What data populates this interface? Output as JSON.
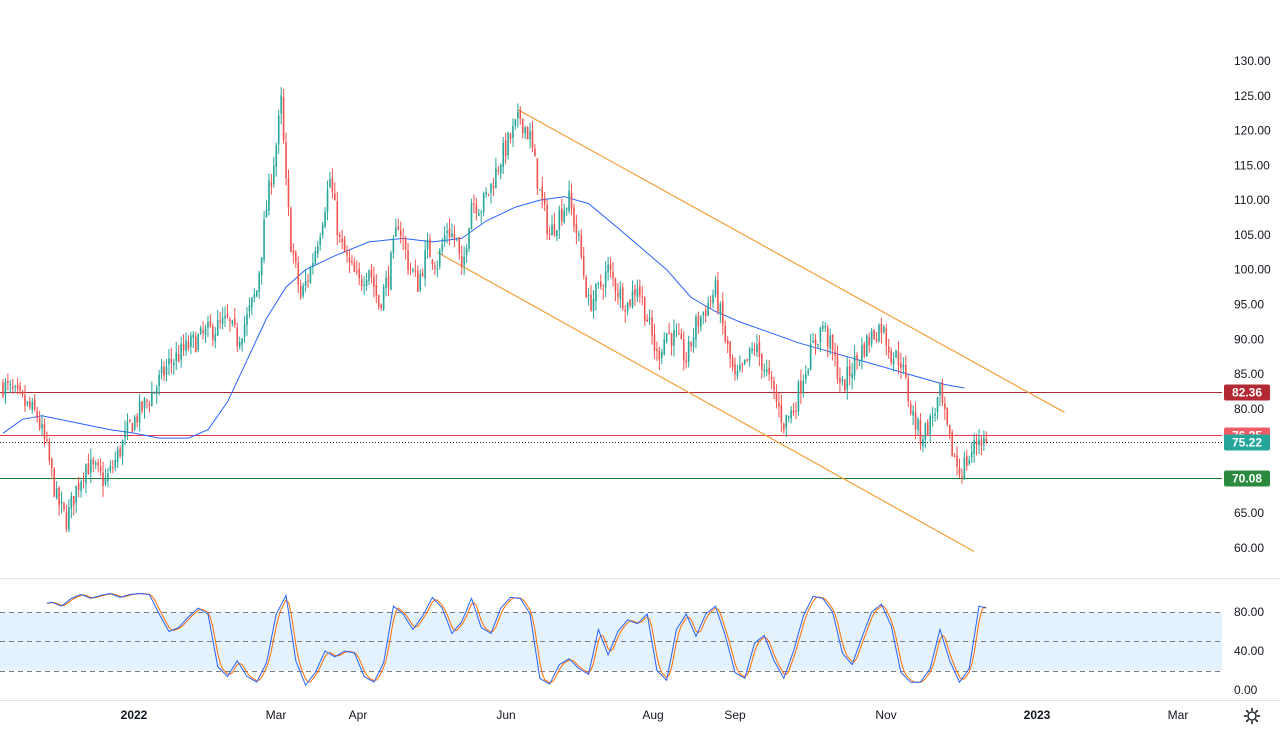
{
  "colors": {
    "up": "#26a69a",
    "down": "#ef5350",
    "ma": "#2962ff",
    "channel": "#f5a03a",
    "resistance": "#b22833",
    "pivot": "#f23645",
    "support": "#1b7b2c",
    "stoch_k": "#2962ff",
    "stoch_d": "#ff6d00",
    "stoch_band": "#e3f2fd"
  },
  "chart_data": [
    {
      "type": "candlestick",
      "price_axis": {
        "ylim": [
          57.5,
          132.0
        ],
        "ticks": [
          "60.00",
          "65.00",
          "70.00",
          "75.00",
          "80.00",
          "85.00",
          "90.00",
          "95.00",
          "100.00",
          "105.00",
          "110.00",
          "115.00",
          "120.00",
          "125.00",
          "130.00"
        ]
      },
      "time_axis": {
        "labels": [
          "2022",
          "Mar",
          "Apr",
          "Jun",
          "Aug",
          "Sep",
          "Nov",
          "2023",
          "Mar"
        ],
        "bold": [
          "2022",
          "2023"
        ]
      },
      "horizontal_levels": [
        {
          "value": 82.36,
          "label": "82.36",
          "style": "solid",
          "role": "resistance"
        },
        {
          "value": 76.25,
          "label": "76.25",
          "style": "solid",
          "role": "pivot"
        },
        {
          "value": 75.22,
          "label": "75.22",
          "style": "dotted",
          "role": "last-price"
        },
        {
          "value": 70.08,
          "label": "70.08",
          "style": "solid",
          "role": "support"
        }
      ],
      "anchors": [
        {
          "t": 0,
          "p": 83.5
        },
        {
          "t": 8,
          "p": 81.0
        },
        {
          "t": 14,
          "p": 79.0
        },
        {
          "t": 18,
          "p": 74.0
        },
        {
          "t": 22,
          "p": 67.0
        },
        {
          "t": 26,
          "p": 64.0
        },
        {
          "t": 30,
          "p": 68.5
        },
        {
          "t": 34,
          "p": 72.0
        },
        {
          "t": 38,
          "p": 71.0
        },
        {
          "t": 42,
          "p": 69.5
        },
        {
          "t": 46,
          "p": 72.5
        },
        {
          "t": 52,
          "p": 77.5
        },
        {
          "t": 60,
          "p": 81.5
        },
        {
          "t": 68,
          "p": 86.5
        },
        {
          "t": 76,
          "p": 89.0
        },
        {
          "t": 84,
          "p": 91.0
        },
        {
          "t": 92,
          "p": 92.5
        },
        {
          "t": 96,
          "p": 90.0
        },
        {
          "t": 100,
          "p": 93.0
        },
        {
          "t": 104,
          "p": 97.0
        },
        {
          "t": 108,
          "p": 109.0
        },
        {
          "t": 112,
          "p": 118.0
        },
        {
          "t": 114,
          "p": 124.0
        },
        {
          "t": 116,
          "p": 112.0
        },
        {
          "t": 118,
          "p": 104.0
        },
        {
          "t": 122,
          "p": 96.0
        },
        {
          "t": 126,
          "p": 100.0
        },
        {
          "t": 130,
          "p": 106.0
        },
        {
          "t": 134,
          "p": 113.0
        },
        {
          "t": 138,
          "p": 104.0
        },
        {
          "t": 142,
          "p": 100.5
        },
        {
          "t": 146,
          "p": 98.0
        },
        {
          "t": 150,
          "p": 100.5
        },
        {
          "t": 154,
          "p": 95.0
        },
        {
          "t": 158,
          "p": 99.0
        },
        {
          "t": 162,
          "p": 107.0
        },
        {
          "t": 166,
          "p": 101.0
        },
        {
          "t": 170,
          "p": 98.0
        },
        {
          "t": 174,
          "p": 103.0
        },
        {
          "t": 178,
          "p": 101.0
        },
        {
          "t": 182,
          "p": 106.0
        },
        {
          "t": 186,
          "p": 104.0
        },
        {
          "t": 188,
          "p": 99.0
        },
        {
          "t": 192,
          "p": 110.0
        },
        {
          "t": 196,
          "p": 109.0
        },
        {
          "t": 200,
          "p": 112.0
        },
        {
          "t": 204,
          "p": 116.0
        },
        {
          "t": 208,
          "p": 119.0
        },
        {
          "t": 212,
          "p": 122.0
        },
        {
          "t": 216,
          "p": 119.0
        },
        {
          "t": 220,
          "p": 111.0
        },
        {
          "t": 224,
          "p": 105.0
        },
        {
          "t": 228,
          "p": 108.0
        },
        {
          "t": 232,
          "p": 110.0
        },
        {
          "t": 236,
          "p": 104.0
        },
        {
          "t": 240,
          "p": 95.0
        },
        {
          "t": 244,
          "p": 97.0
        },
        {
          "t": 248,
          "p": 100.0
        },
        {
          "t": 252,
          "p": 97.0
        },
        {
          "t": 256,
          "p": 95.0
        },
        {
          "t": 260,
          "p": 98.0
        },
        {
          "t": 264,
          "p": 93.0
        },
        {
          "t": 268,
          "p": 87.5
        },
        {
          "t": 272,
          "p": 91.0
        },
        {
          "t": 276,
          "p": 90.0
        },
        {
          "t": 280,
          "p": 87.0
        },
        {
          "t": 284,
          "p": 92.0
        },
        {
          "t": 288,
          "p": 94.5
        },
        {
          "t": 292,
          "p": 97.0
        },
        {
          "t": 296,
          "p": 90.0
        },
        {
          "t": 300,
          "p": 84.0
        },
        {
          "t": 304,
          "p": 86.0
        },
        {
          "t": 308,
          "p": 89.0
        },
        {
          "t": 312,
          "p": 86.0
        },
        {
          "t": 316,
          "p": 82.0
        },
        {
          "t": 320,
          "p": 78.0
        },
        {
          "t": 324,
          "p": 80.0
        },
        {
          "t": 328,
          "p": 85.0
        },
        {
          "t": 332,
          "p": 89.0
        },
        {
          "t": 336,
          "p": 92.0
        },
        {
          "t": 340,
          "p": 88.0
        },
        {
          "t": 344,
          "p": 83.0
        },
        {
          "t": 348,
          "p": 86.0
        },
        {
          "t": 352,
          "p": 88.5
        },
        {
          "t": 356,
          "p": 90.5
        },
        {
          "t": 360,
          "p": 92.0
        },
        {
          "t": 364,
          "p": 88.0
        },
        {
          "t": 368,
          "p": 87.0
        },
        {
          "t": 372,
          "p": 80.0
        },
        {
          "t": 376,
          "p": 76.0
        },
        {
          "t": 380,
          "p": 78.0
        },
        {
          "t": 384,
          "p": 82.0
        },
        {
          "t": 388,
          "p": 75.0
        },
        {
          "t": 392,
          "p": 71.0
        },
        {
          "t": 396,
          "p": 73.0
        },
        {
          "t": 400,
          "p": 76.0
        },
        {
          "t": 403,
          "p": 75.22
        }
      ],
      "moving_average": [
        [
          0,
          76.5
        ],
        [
          8,
          78.5
        ],
        [
          16,
          79.0
        ],
        [
          30,
          78.0
        ],
        [
          44,
          77.0
        ],
        [
          54,
          76.5
        ],
        [
          64,
          75.8
        ],
        [
          76,
          75.8
        ],
        [
          84,
          77.0
        ],
        [
          92,
          81.0
        ],
        [
          100,
          87.0
        ],
        [
          108,
          93.0
        ],
        [
          116,
          97.5
        ],
        [
          124,
          100.0
        ],
        [
          136,
          102.0
        ],
        [
          150,
          104.0
        ],
        [
          164,
          104.5
        ],
        [
          176,
          104.0
        ],
        [
          188,
          104.5
        ],
        [
          198,
          107.0
        ],
        [
          210,
          109.0
        ],
        [
          220,
          110.0
        ],
        [
          230,
          110.5
        ],
        [
          240,
          109.5
        ],
        [
          252,
          106.0
        ],
        [
          262,
          103.0
        ],
        [
          272,
          100.0
        ],
        [
          282,
          96.0
        ],
        [
          292,
          94.0
        ],
        [
          302,
          92.5
        ],
        [
          314,
          91.0
        ],
        [
          326,
          89.5
        ],
        [
          336,
          88.5
        ],
        [
          346,
          87.5
        ],
        [
          356,
          86.5
        ],
        [
          366,
          85.5
        ],
        [
          376,
          84.5
        ],
        [
          386,
          83.5
        ],
        [
          394,
          83.0
        ]
      ],
      "channel": {
        "upper": [
          [
            211,
            123.0
          ],
          [
            435,
            79.5
          ]
        ],
        "lower": [
          [
            178,
            102.5
          ],
          [
            398,
            59.5
          ]
        ]
      }
    },
    {
      "type": "line",
      "name": "Stochastic",
      "ylim": [
        0,
        100
      ],
      "ticks": [
        "80.00",
        "40.00",
        "0.00"
      ],
      "band": {
        "upper": 80,
        "middle": 50,
        "lower": 20
      },
      "k_anchors": [
        [
          0,
          17
        ],
        [
          4,
          8
        ],
        [
          8,
          6
        ],
        [
          12,
          50
        ],
        [
          16,
          88
        ],
        [
          20,
          90
        ],
        [
          24,
          86
        ],
        [
          28,
          94
        ],
        [
          32,
          98
        ],
        [
          36,
          94
        ],
        [
          40,
          97
        ],
        [
          44,
          99
        ],
        [
          48,
          95
        ],
        [
          52,
          98
        ],
        [
          56,
          99
        ],
        [
          60,
          98
        ],
        [
          64,
          78
        ],
        [
          68,
          60
        ],
        [
          72,
          64
        ],
        [
          76,
          75
        ],
        [
          80,
          84
        ],
        [
          84,
          78
        ],
        [
          88,
          24
        ],
        [
          92,
          14
        ],
        [
          96,
          30
        ],
        [
          100,
          14
        ],
        [
          104,
          8
        ],
        [
          108,
          28
        ],
        [
          112,
          78
        ],
        [
          116,
          97
        ],
        [
          120,
          30
        ],
        [
          124,
          5
        ],
        [
          128,
          18
        ],
        [
          132,
          40
        ],
        [
          136,
          34
        ],
        [
          140,
          40
        ],
        [
          144,
          38
        ],
        [
          148,
          14
        ],
        [
          152,
          8
        ],
        [
          156,
          28
        ],
        [
          160,
          86
        ],
        [
          164,
          78
        ],
        [
          168,
          62
        ],
        [
          172,
          76
        ],
        [
          176,
          95
        ],
        [
          180,
          84
        ],
        [
          184,
          58
        ],
        [
          188,
          70
        ],
        [
          192,
          94
        ],
        [
          196,
          64
        ],
        [
          200,
          58
        ],
        [
          204,
          84
        ],
        [
          208,
          95
        ],
        [
          212,
          94
        ],
        [
          216,
          78
        ],
        [
          220,
          12
        ],
        [
          224,
          6
        ],
        [
          228,
          26
        ],
        [
          232,
          32
        ],
        [
          236,
          22
        ],
        [
          240,
          16
        ],
        [
          244,
          62
        ],
        [
          248,
          36
        ],
        [
          252,
          60
        ],
        [
          256,
          72
        ],
        [
          260,
          68
        ],
        [
          264,
          78
        ],
        [
          268,
          20
        ],
        [
          272,
          10
        ],
        [
          276,
          62
        ],
        [
          280,
          78
        ],
        [
          284,
          55
        ],
        [
          288,
          78
        ],
        [
          292,
          86
        ],
        [
          296,
          56
        ],
        [
          300,
          18
        ],
        [
          304,
          12
        ],
        [
          308,
          48
        ],
        [
          312,
          56
        ],
        [
          316,
          30
        ],
        [
          320,
          12
        ],
        [
          324,
          40
        ],
        [
          328,
          76
        ],
        [
          332,
          96
        ],
        [
          336,
          94
        ],
        [
          340,
          80
        ],
        [
          344,
          38
        ],
        [
          348,
          26
        ],
        [
          352,
          54
        ],
        [
          356,
          80
        ],
        [
          360,
          88
        ],
        [
          364,
          66
        ],
        [
          368,
          18
        ],
        [
          372,
          8
        ],
        [
          376,
          8
        ],
        [
          380,
          22
        ],
        [
          384,
          62
        ],
        [
          388,
          30
        ],
        [
          392,
          8
        ],
        [
          396,
          22
        ],
        [
          400,
          86
        ],
        [
          403,
          84
        ]
      ]
    }
  ]
}
